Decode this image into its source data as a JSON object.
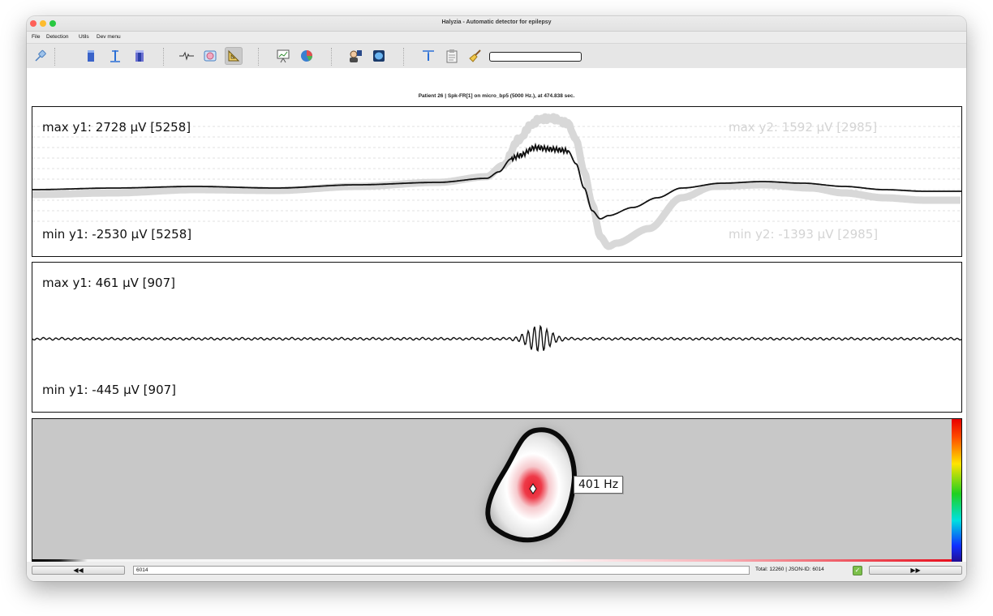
{
  "window": {
    "title": "Halyzia - Automatic detector for epilepsy"
  },
  "menu": {
    "items": [
      "File",
      "Detection",
      "Utils",
      "Dev menu"
    ]
  },
  "toolbar": {
    "icons": [
      "pin-icon",
      "blue-bar-icon",
      "cursor-bar-icon",
      "dual-bar-icon",
      "waveform-icon",
      "brain-scan-icon",
      "ruler-icon",
      "presentation-icon",
      "pie-chart-icon",
      "patient-icon",
      "brain-icon",
      "info-filter-icon",
      "clipboard-icon",
      "broom-icon"
    ],
    "progress": 0
  },
  "info": {
    "text": "Patient 26   |   Spk-FR[1] on micro_bp5 (5000 Hz.), at 474.838 sec."
  },
  "panel1": {
    "max_y1": "max y1: 2728 µV [5258]",
    "min_y1": "min y1: -2530 µV [5258]",
    "max_y2": "max y2: 1592 µV [2985]",
    "min_y2": "min y2: -1393 µV [2985]"
  },
  "panel2": {
    "max_y1": "max y1: 461 µV [907]",
    "min_y1": "min y1: -445 µV [907]"
  },
  "panel3": {
    "freq_label": "401 Hz"
  },
  "colors": {
    "trace": "#111111",
    "ghost_trace": "#d8d8d8",
    "spectrogram_bg": "#c8c8c8",
    "blob_red": "#e8202e"
  },
  "bottom": {
    "prev_label": "◀◀",
    "next_label": "▶▶",
    "id_value": "6014",
    "total_label": "Total: 12260   |   JSON-ID: 6014",
    "checked": true
  }
}
